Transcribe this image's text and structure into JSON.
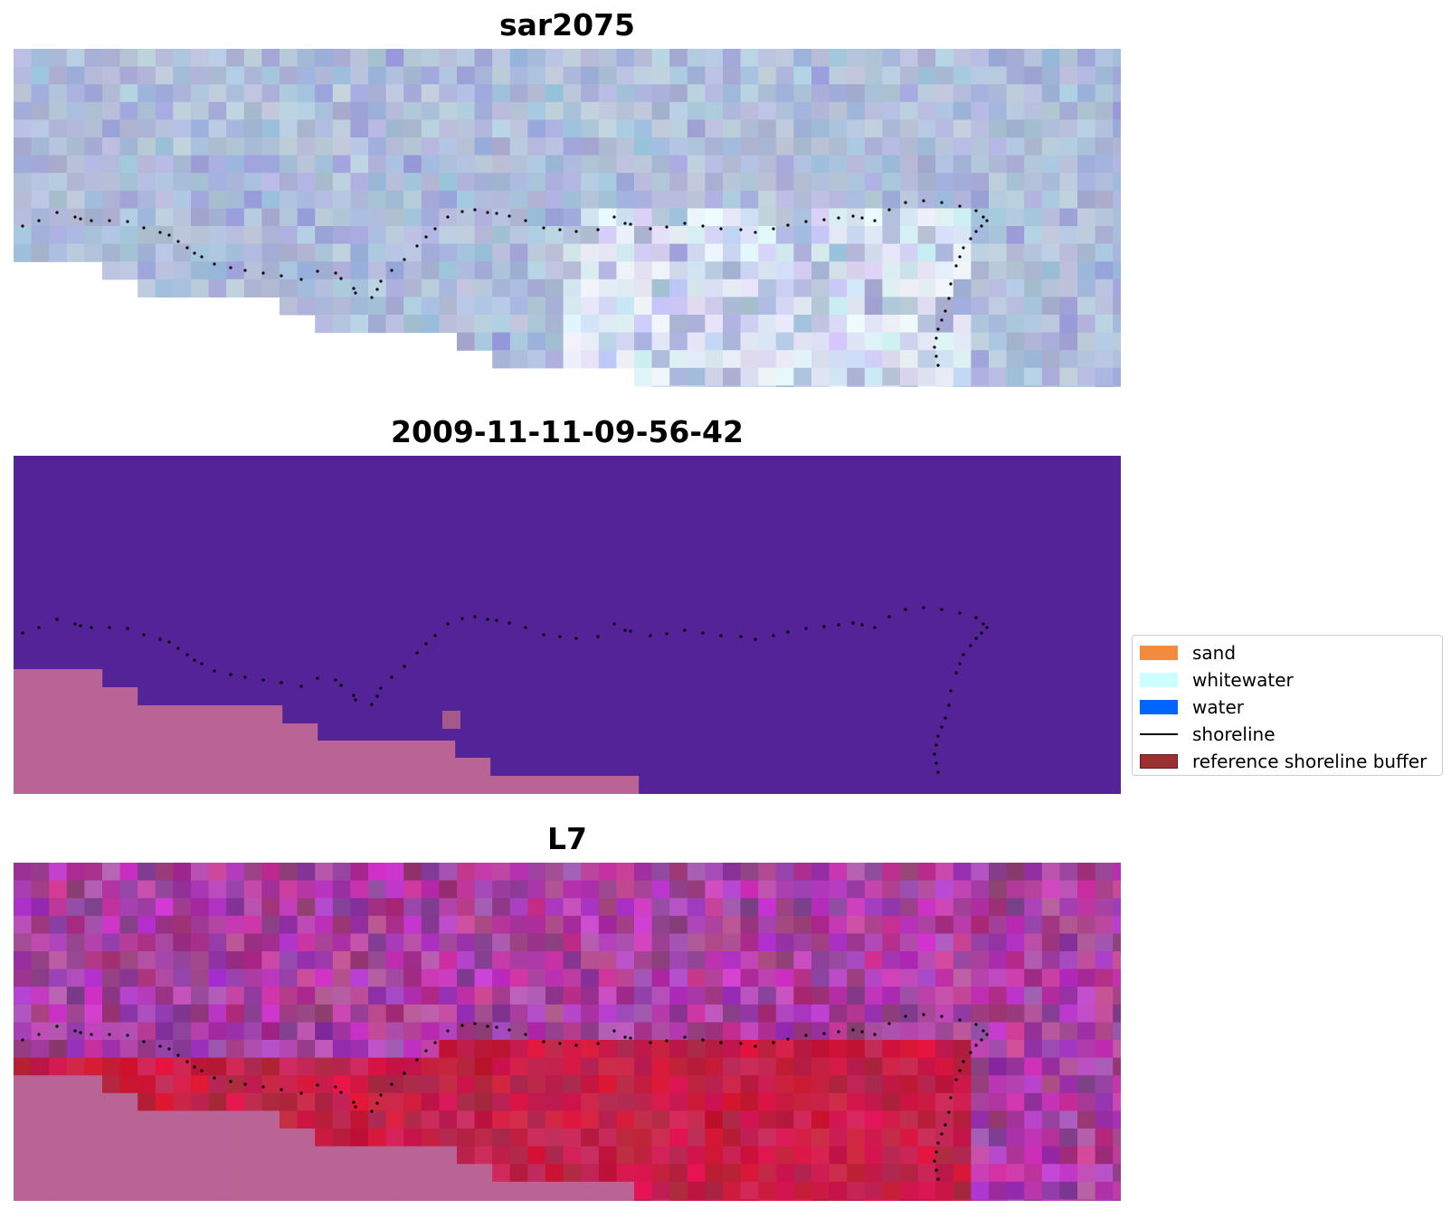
{
  "panels": [
    {
      "title": "sar2075"
    },
    {
      "title": "2009-11-11-09-56-42"
    },
    {
      "title": "L7"
    }
  ],
  "legend": {
    "items": [
      {
        "label": "sand",
        "type": "patch",
        "color": "#f28c3c"
      },
      {
        "label": "whitewater",
        "type": "patch",
        "color": "#ccffff"
      },
      {
        "label": "water",
        "type": "patch",
        "color": "#0064ff"
      },
      {
        "label": "shoreline",
        "type": "line",
        "color": "#000000"
      },
      {
        "label": "reference shoreline buffer",
        "type": "patch",
        "color": "#9c3030"
      }
    ]
  },
  "colors": {
    "classified_water": "#532397",
    "classified_land": "#ba6395",
    "shoreline_points": "#000000"
  }
}
